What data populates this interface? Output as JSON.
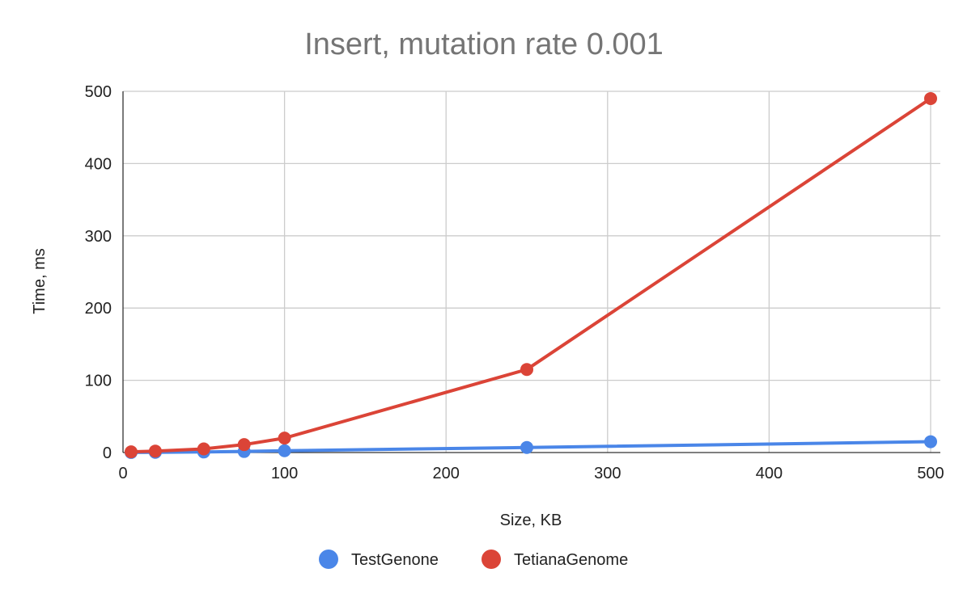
{
  "chart_data": {
    "type": "line",
    "title": "Insert, mutation rate 0.001",
    "xlabel": "Size, KB",
    "ylabel": "Time, ms",
    "xlim": [
      0,
      500
    ],
    "ylim": [
      0,
      500
    ],
    "xticks": [
      0,
      100,
      200,
      300,
      400,
      500
    ],
    "yticks": [
      0,
      100,
      200,
      300,
      400,
      500
    ],
    "grid": true,
    "legend_position": "bottom",
    "series": [
      {
        "name": "TestGenone",
        "color": "#4a86e8",
        "x": [
          5,
          20,
          50,
          75,
          100,
          250,
          500
        ],
        "y": [
          0.1,
          0.3,
          0.8,
          1.5,
          2.5,
          7,
          15
        ]
      },
      {
        "name": "TetianaGenome",
        "color": "#db4437",
        "x": [
          5,
          20,
          50,
          75,
          100,
          250,
          500
        ],
        "y": [
          1,
          2,
          5,
          11,
          20,
          115,
          490
        ]
      }
    ]
  }
}
